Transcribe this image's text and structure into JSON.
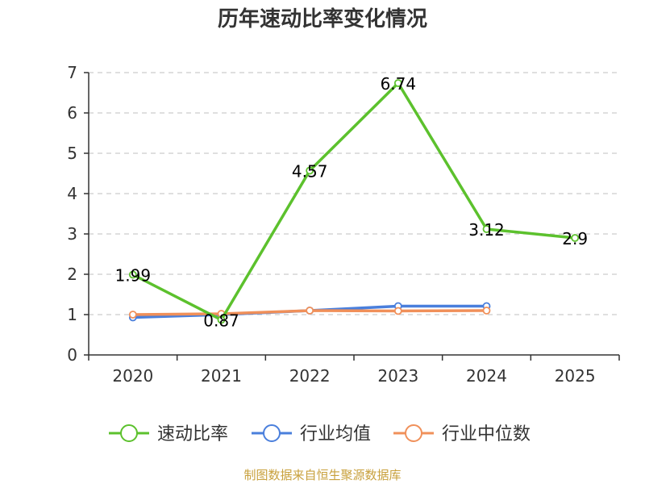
{
  "chart_data": {
    "type": "line",
    "title": "历年速动比率变化情况",
    "categories": [
      "2020",
      "2021",
      "2022",
      "2023",
      "2024",
      "2025"
    ],
    "ylim": [
      0,
      7
    ],
    "yticks": [
      "0",
      "1",
      "2",
      "3",
      "4",
      "5",
      "6",
      "7"
    ],
    "grid": true,
    "legend_position": "bottom",
    "series": [
      {
        "name": "速动比率",
        "color": "#5cc12d",
        "values": [
          1.99,
          0.87,
          4.57,
          6.74,
          3.12,
          2.9
        ],
        "labels": [
          "1.99",
          "0.87",
          "4.57",
          "6.74",
          "3.12",
          "2.9"
        ]
      },
      {
        "name": "行业均值",
        "color": "#4a7fdc",
        "values": [
          0.93,
          1.0,
          1.1,
          1.21,
          1.21,
          null
        ]
      },
      {
        "name": "行业中位数",
        "color": "#f0905a",
        "values": [
          1.0,
          1.02,
          1.1,
          1.09,
          1.1,
          null
        ]
      }
    ],
    "source": "制图数据来自恒生聚源数据库"
  }
}
